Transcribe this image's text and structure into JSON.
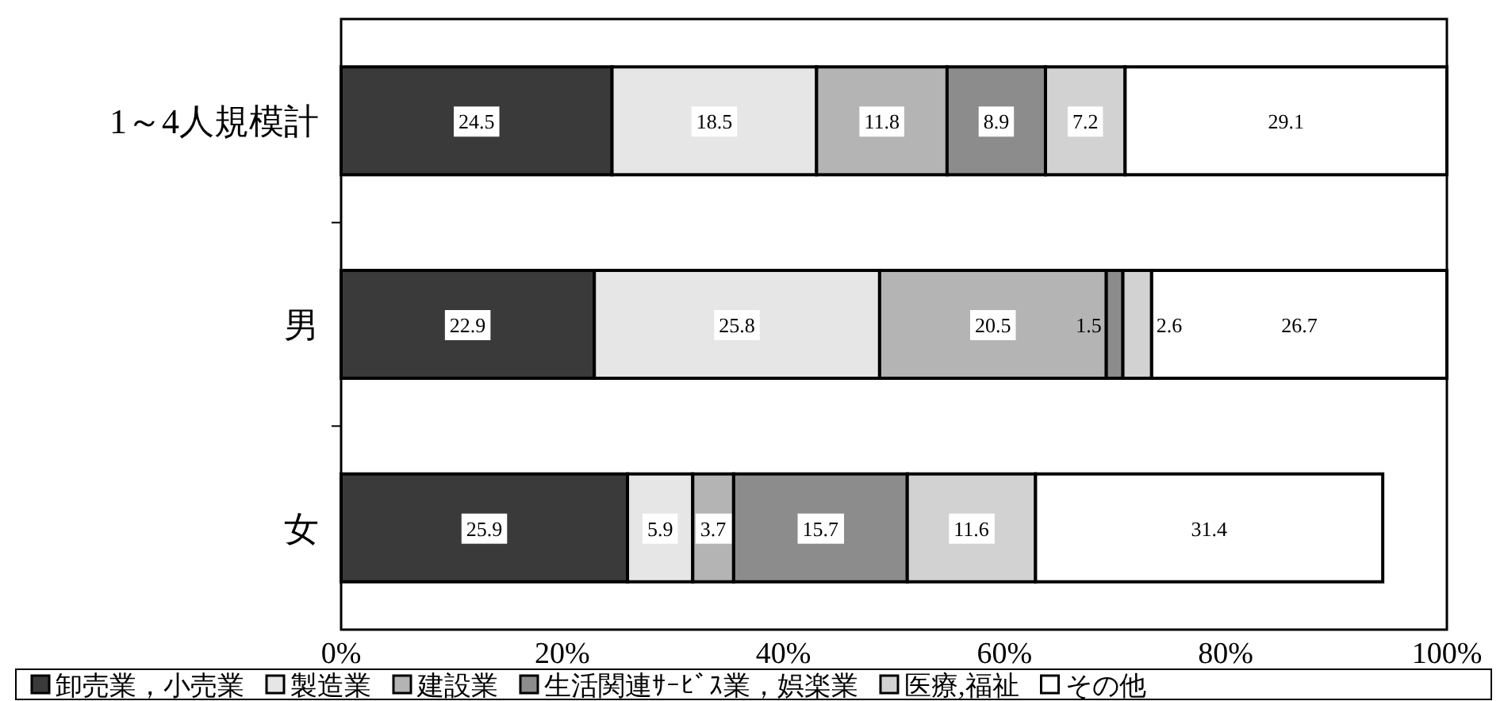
{
  "chart_data": {
    "type": "bar",
    "orientation": "horizontal",
    "stacked": true,
    "data_labels": true,
    "legend": "bottom",
    "grid": false,
    "categories": [
      "1～4人規模計",
      "男",
      "女"
    ],
    "xlim": [
      0,
      100
    ],
    "xticks": [
      {
        "value": 0,
        "label": "0%"
      },
      {
        "value": 20,
        "label": "20%"
      },
      {
        "value": 40,
        "label": "40%"
      },
      {
        "value": 60,
        "label": "60%"
      },
      {
        "value": 80,
        "label": "80%"
      },
      {
        "value": 100,
        "label": "100%"
      }
    ],
    "series": [
      {
        "name": "卸売業，小売業",
        "color": "#3a3a3a",
        "values": [
          24.5,
          22.9,
          25.9
        ]
      },
      {
        "name": "製造業",
        "color": "#e6e6e6",
        "values": [
          18.5,
          25.8,
          5.9
        ]
      },
      {
        "name": "建設業",
        "color": "#b4b4b4",
        "values": [
          11.8,
          20.5,
          3.7
        ]
      },
      {
        "name": "生活関連ｻｰﾋﾞｽ業，娯楽業",
        "color": "#8c8c8c",
        "values": [
          8.9,
          1.5,
          15.7
        ]
      },
      {
        "name": "医療,福祉",
        "color": "#d2d2d2",
        "values": [
          7.2,
          2.6,
          11.6
        ]
      },
      {
        "name": "その他",
        "color": "#ffffff",
        "values": [
          29.1,
          26.7,
          31.4
        ]
      }
    ]
  }
}
